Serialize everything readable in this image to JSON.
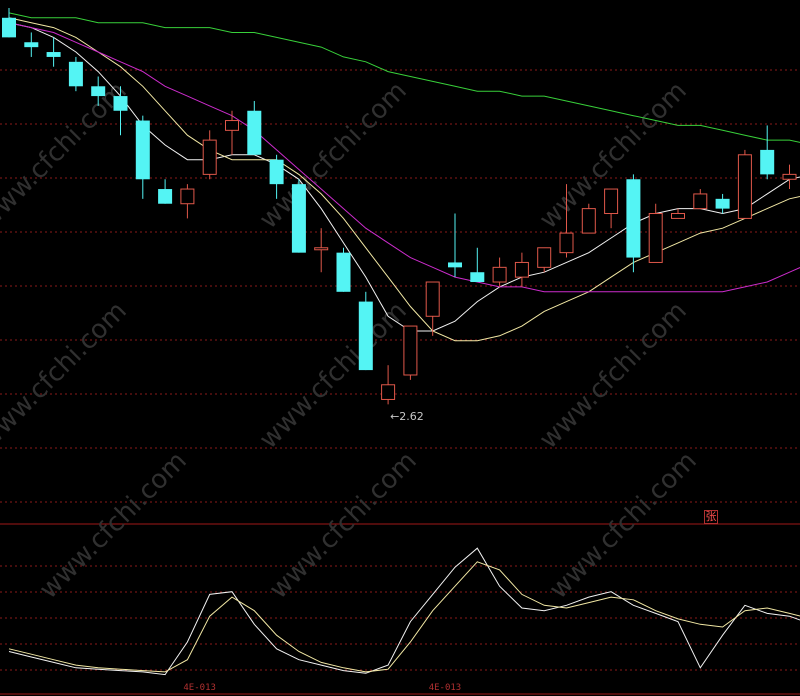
{
  "watermark": "www.cfchi.com",
  "colors": {
    "background": "#000000",
    "up": "#e0584a",
    "down": "#54f4f4",
    "ma_short": "#f2f2f2",
    "ma_mid": "#f2e8a4",
    "ma_long": "#cc2ccc",
    "ma_longest": "#38d03a",
    "grid": "#8a1a1a",
    "separator": "#a01818",
    "osc_k": "#f2f2f2",
    "osc_d": "#f2e8a4"
  },
  "chart_data": [
    {
      "type": "candlestick",
      "title": "",
      "ylim": [
        2.4,
        3.43
      ],
      "grid": true,
      "low_annotation": {
        "label": "2.62",
        "value": 2.62
      },
      "badge": "张",
      "candles": [
        {
          "o": 3.41,
          "h": 3.43,
          "l": 3.37,
          "c": 3.37
        },
        {
          "o": 3.36,
          "h": 3.38,
          "l": 3.33,
          "c": 3.35
        },
        {
          "o": 3.34,
          "h": 3.37,
          "l": 3.31,
          "c": 3.33
        },
        {
          "o": 3.32,
          "h": 3.33,
          "l": 3.26,
          "c": 3.27
        },
        {
          "o": 3.27,
          "h": 3.29,
          "l": 3.23,
          "c": 3.25
        },
        {
          "o": 3.25,
          "h": 3.27,
          "l": 3.17,
          "c": 3.22
        },
        {
          "o": 3.2,
          "h": 3.21,
          "l": 3.04,
          "c": 3.08
        },
        {
          "o": 3.06,
          "h": 3.08,
          "l": 3.03,
          "c": 3.03
        },
        {
          "o": 3.03,
          "h": 3.07,
          "l": 3.0,
          "c": 3.06
        },
        {
          "o": 3.09,
          "h": 3.18,
          "l": 3.08,
          "c": 3.16
        },
        {
          "o": 3.18,
          "h": 3.22,
          "l": 3.13,
          "c": 3.2
        },
        {
          "o": 3.22,
          "h": 3.24,
          "l": 3.13,
          "c": 3.13
        },
        {
          "o": 3.12,
          "h": 3.13,
          "l": 3.04,
          "c": 3.07
        },
        {
          "o": 3.07,
          "h": 3.08,
          "l": 2.93,
          "c": 2.93
        },
        {
          "o": 2.94,
          "h": 2.98,
          "l": 2.89,
          "c": 2.94
        },
        {
          "o": 2.93,
          "h": 2.94,
          "l": 2.85,
          "c": 2.85
        },
        {
          "o": 2.83,
          "h": 2.85,
          "l": 2.69,
          "c": 2.69
        },
        {
          "o": 2.63,
          "h": 2.7,
          "l": 2.62,
          "c": 2.66
        },
        {
          "o": 2.68,
          "h": 2.78,
          "l": 2.67,
          "c": 2.78
        },
        {
          "o": 2.8,
          "h": 2.87,
          "l": 2.76,
          "c": 2.87
        },
        {
          "o": 2.91,
          "h": 3.01,
          "l": 2.88,
          "c": 2.9
        },
        {
          "o": 2.89,
          "h": 2.94,
          "l": 2.87,
          "c": 2.87
        },
        {
          "o": 2.87,
          "h": 2.92,
          "l": 2.86,
          "c": 2.9
        },
        {
          "o": 2.88,
          "h": 2.93,
          "l": 2.86,
          "c": 2.91
        },
        {
          "o": 2.9,
          "h": 2.94,
          "l": 2.89,
          "c": 2.94
        },
        {
          "o": 2.93,
          "h": 3.07,
          "l": 2.92,
          "c": 2.97
        },
        {
          "o": 2.97,
          "h": 3.03,
          "l": 2.97,
          "c": 3.02
        },
        {
          "o": 3.01,
          "h": 3.06,
          "l": 2.98,
          "c": 3.06
        },
        {
          "o": 3.08,
          "h": 3.09,
          "l": 2.89,
          "c": 2.92
        },
        {
          "o": 2.91,
          "h": 3.03,
          "l": 2.91,
          "c": 3.01
        },
        {
          "o": 3.0,
          "h": 3.02,
          "l": 3.0,
          "c": 3.01
        },
        {
          "o": 3.02,
          "h": 3.06,
          "l": 3.02,
          "c": 3.05
        },
        {
          "o": 3.04,
          "h": 3.05,
          "l": 3.01,
          "c": 3.02
        },
        {
          "o": 3.0,
          "h": 3.14,
          "l": 3.0,
          "c": 3.13
        },
        {
          "o": 3.14,
          "h": 3.19,
          "l": 3.08,
          "c": 3.09
        },
        {
          "o": 3.08,
          "h": 3.11,
          "l": 3.06,
          "c": 3.09
        },
        {
          "o": 3.1,
          "h": 3.12,
          "l": 3.08,
          "c": 3.09
        }
      ],
      "moving_averages": [
        {
          "key": "ma_short",
          "values": [
            3.4,
            3.39,
            3.37,
            3.34,
            3.3,
            3.25,
            3.19,
            3.15,
            3.12,
            3.12,
            3.13,
            3.13,
            3.11,
            3.08,
            3.02,
            2.95,
            2.88,
            2.8,
            2.77,
            2.77,
            2.79,
            2.83,
            2.86,
            2.88,
            2.89,
            2.91,
            2.93,
            2.96,
            2.99,
            3.01,
            3.02,
            3.02,
            3.01,
            3.02,
            3.05,
            3.08,
            3.09
          ]
        },
        {
          "key": "ma_mid",
          "values": [
            3.41,
            3.4,
            3.39,
            3.37,
            3.34,
            3.31,
            3.27,
            3.22,
            3.17,
            3.14,
            3.12,
            3.12,
            3.12,
            3.09,
            3.05,
            3.0,
            2.94,
            2.88,
            2.82,
            2.77,
            2.75,
            2.75,
            2.76,
            2.78,
            2.81,
            2.83,
            2.85,
            2.88,
            2.91,
            2.93,
            2.95,
            2.97,
            2.98,
            3.0,
            3.02,
            3.04,
            3.05
          ]
        },
        {
          "key": "ma_long",
          "values": [
            3.4,
            3.39,
            3.38,
            3.36,
            3.34,
            3.32,
            3.3,
            3.27,
            3.25,
            3.23,
            3.21,
            3.18,
            3.14,
            3.1,
            3.06,
            3.02,
            2.98,
            2.95,
            2.92,
            2.9,
            2.88,
            2.87,
            2.86,
            2.86,
            2.85,
            2.85,
            2.85,
            2.85,
            2.85,
            2.85,
            2.85,
            2.85,
            2.85,
            2.86,
            2.87,
            2.89,
            2.91
          ]
        },
        {
          "key": "ma_longest",
          "values": [
            3.42,
            3.41,
            3.41,
            3.41,
            3.4,
            3.4,
            3.4,
            3.39,
            3.39,
            3.39,
            3.38,
            3.38,
            3.37,
            3.36,
            3.35,
            3.33,
            3.32,
            3.3,
            3.29,
            3.28,
            3.27,
            3.26,
            3.26,
            3.25,
            3.25,
            3.24,
            3.23,
            3.22,
            3.21,
            3.2,
            3.19,
            3.19,
            3.18,
            3.17,
            3.16,
            3.16,
            3.15
          ]
        }
      ]
    },
    {
      "type": "line",
      "ylim": [
        0,
        100
      ],
      "x_tick_labels": [
        {
          "index": 8,
          "label": "4E-013"
        },
        {
          "index": 19,
          "label": "4E-013"
        }
      ],
      "series": [
        {
          "key": "osc_k",
          "values": [
            18,
            14,
            10,
            6,
            5,
            4,
            3,
            1,
            25,
            60,
            62,
            38,
            20,
            12,
            8,
            4,
            2,
            8,
            40,
            60,
            80,
            94,
            66,
            50,
            48,
            52,
            58,
            62,
            52,
            46,
            40,
            6,
            30,
            52,
            46,
            44,
            38
          ]
        },
        {
          "key": "osc_d",
          "values": [
            20,
            16,
            12,
            8,
            6,
            5,
            4,
            3,
            12,
            44,
            58,
            48,
            30,
            18,
            10,
            6,
            3,
            5,
            25,
            48,
            66,
            84,
            78,
            60,
            52,
            50,
            54,
            58,
            56,
            48,
            42,
            38,
            36,
            48,
            50,
            46,
            42
          ]
        }
      ]
    }
  ]
}
